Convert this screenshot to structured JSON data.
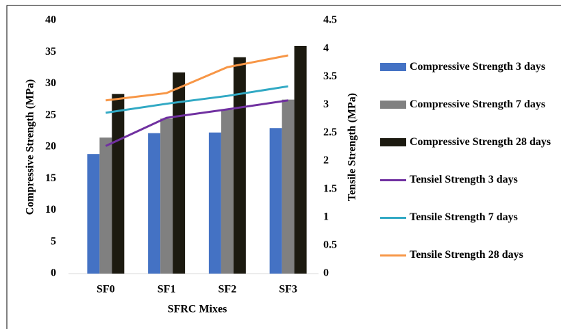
{
  "chart_data": {
    "type": "bar-line",
    "categories": [
      "SF0",
      "SF1",
      "SF2",
      "SF3"
    ],
    "x_label": "SFRC Mixes",
    "y_label": "Compressive Strength (MPa)",
    "y2_label": "Tensile Strength (MPa)",
    "ylim": [
      0,
      40
    ],
    "yticks": [
      0,
      5,
      10,
      15,
      20,
      25,
      30,
      35,
      40
    ],
    "y2lim": [
      0,
      4.5
    ],
    "y2ticks": [
      0,
      0.5,
      1,
      1.5,
      2,
      2.5,
      3,
      3.5,
      4,
      4.5
    ],
    "legend": "right",
    "series": [
      {
        "name": "Compressive Strength 3 days",
        "type": "bar",
        "color": "#4472c4",
        "values": [
          18.9,
          22.2,
          22.3,
          23.0
        ]
      },
      {
        "name": "Compressive Strength 7 days",
        "type": "bar",
        "color": "#808080",
        "values": [
          21.5,
          24.5,
          25.9,
          27.5
        ]
      },
      {
        "name": "Compressive Strength 28 days",
        "type": "bar",
        "color": "#1c1a10",
        "values": [
          28.4,
          31.8,
          34.2,
          36.0
        ]
      },
      {
        "name": "Tensiel Strength 3 days",
        "type": "line",
        "axis": "y2",
        "color": "#7030a0",
        "values": [
          2.27,
          2.77,
          2.92,
          3.08
        ]
      },
      {
        "name": "Tensile Strength 7 days",
        "type": "line",
        "axis": "y2",
        "color": "#31a9c4",
        "values": [
          2.86,
          3.02,
          3.16,
          3.33
        ]
      },
      {
        "name": "Tensile Strength 28 days",
        "type": "line",
        "axis": "y2",
        "color": "#f79646",
        "values": [
          3.08,
          3.21,
          3.67,
          3.88
        ]
      }
    ]
  }
}
